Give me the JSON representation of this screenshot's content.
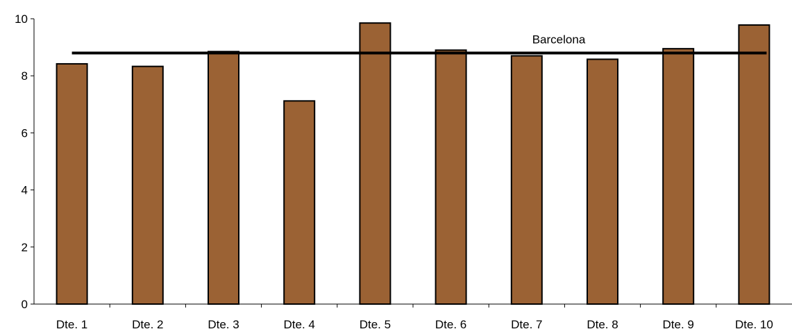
{
  "chart_data": {
    "type": "bar",
    "title": "",
    "xlabel": "",
    "ylabel": "",
    "categories": [
      "Dte. 1",
      "Dte. 2",
      "Dte. 3",
      "Dte. 4",
      "Dte. 5",
      "Dte. 6",
      "Dte. 7",
      "Dte. 8",
      "Dte. 9",
      "Dte. 10"
    ],
    "values": [
      8.42,
      8.33,
      8.85,
      7.12,
      9.85,
      8.9,
      8.7,
      8.58,
      8.95,
      9.78
    ],
    "ylim": [
      0,
      10
    ],
    "yticks": [
      0,
      2,
      4,
      6,
      8,
      10
    ],
    "grid": false,
    "bar_color": "#9B6234",
    "reference_line": {
      "label": "Barcelona",
      "value": 8.8,
      "color": "#000000"
    }
  }
}
